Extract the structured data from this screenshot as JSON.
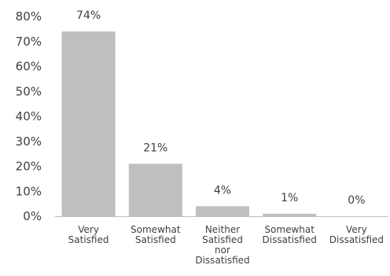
{
  "chart_data": {
    "type": "bar",
    "categories": [
      [
        "Very",
        "Satisfied"
      ],
      [
        "Somewhat",
        "Satisfied"
      ],
      [
        "Neither",
        "Satisfied",
        "nor",
        "Dissatisfied"
      ],
      [
        "Somewhat",
        "Dissatisfied"
      ],
      [
        "Very",
        "Dissatisfied"
      ]
    ],
    "values": [
      74,
      21,
      4,
      1,
      0
    ],
    "data_labels": [
      "74%",
      "21%",
      "4%",
      "1%",
      "0%"
    ],
    "ylim": [
      0,
      80
    ],
    "yticks": [
      0,
      10,
      20,
      30,
      40,
      50,
      60,
      70,
      80
    ],
    "ytick_labels": [
      "0%",
      "10%",
      "20%",
      "30%",
      "40%",
      "50%",
      "60%",
      "70%",
      "80%"
    ],
    "bar_color": "#bfbfbf",
    "grid": false,
    "legend": "none"
  }
}
